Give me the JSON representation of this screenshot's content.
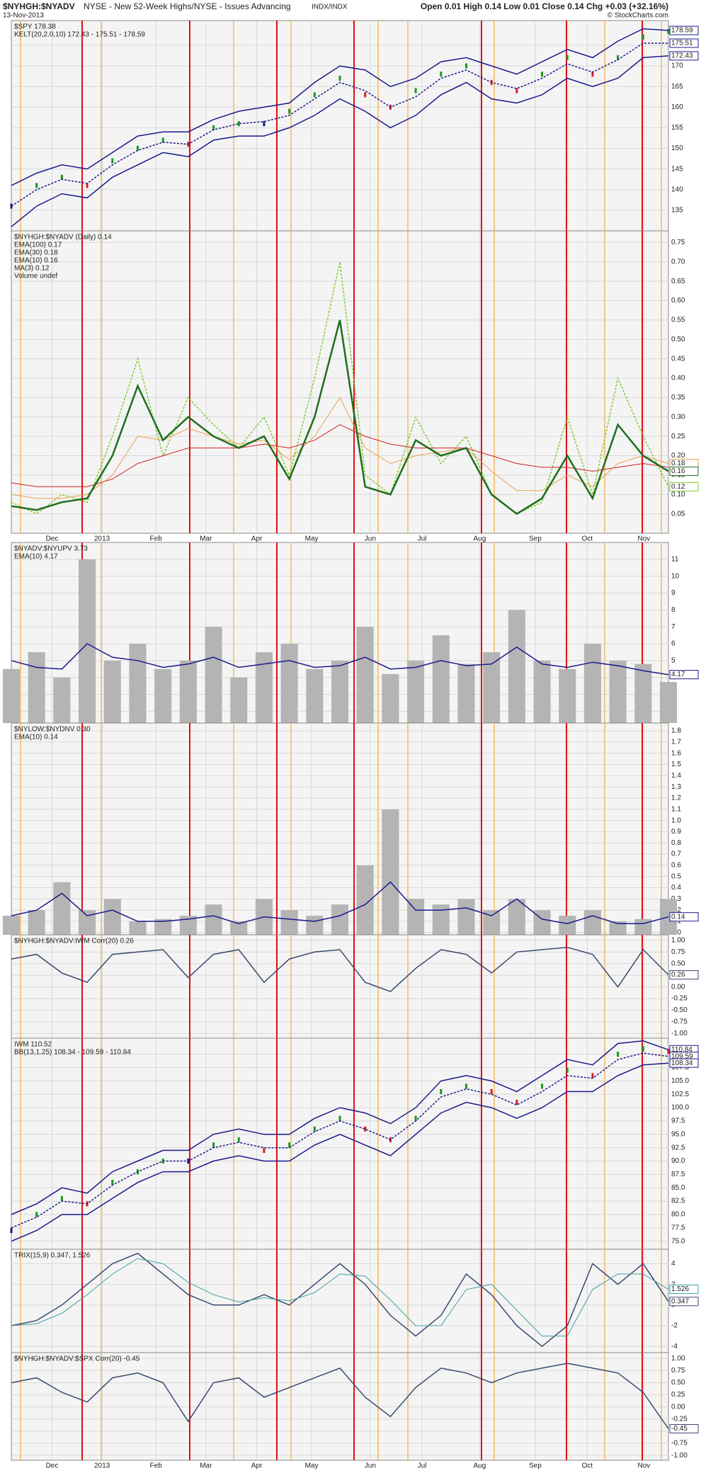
{
  "header": {
    "symbol": "$NYHGH:$NYADV",
    "name": "NYSE - New 52-Week Highs/NYSE - Issues Advancing",
    "exchange": "INDX/INDX",
    "date": "13-Nov-2013",
    "quote": "Open 0.01  High 0.14  Low 0.01  Close 0.14  Chg +0.03 (+32.16%)",
    "source": "© StockCharts.com"
  },
  "chart_data": [
    {
      "type": "line",
      "legend": [
        {
          "text": "$SPY 178.38",
          "color": "#000"
        },
        {
          "text": "KELT(20,2.0,10) 172.43 - 175.51 - 178.59",
          "color": "#1a1a8c"
        }
      ],
      "ylim": [
        130,
        181
      ],
      "yticks": [
        135,
        140,
        145,
        150,
        155,
        160,
        165,
        170,
        175
      ],
      "series": [
        {
          "style": "price",
          "color": "#1a1a8c",
          "values": [
            136,
            141,
            143,
            141,
            147,
            150,
            152,
            151,
            155,
            156,
            156,
            159,
            163,
            167,
            163,
            160,
            164,
            168,
            170,
            166,
            164,
            168,
            172,
            168,
            172,
            177,
            178.38
          ]
        },
        {
          "style": "solid",
          "color": "#1a1a8c",
          "values": [
            141,
            144,
            146,
            145,
            149,
            153,
            154,
            154,
            157,
            159,
            160,
            161,
            166,
            170,
            169,
            165,
            167,
            171,
            172,
            170,
            168,
            171,
            174,
            172,
            176,
            179,
            178.59
          ]
        },
        {
          "style": "dotted",
          "color": "#1a1a8c",
          "values": [
            136,
            140,
            142.5,
            141.5,
            146,
            149.5,
            151.5,
            151,
            154.5,
            156,
            156.5,
            158,
            162,
            166,
            164,
            160,
            162.5,
            167,
            169,
            166,
            164.5,
            167,
            170.5,
            168.5,
            171.5,
            175.5,
            175.51
          ]
        },
        {
          "style": "solid",
          "color": "#1a1a8c",
          "values": [
            131,
            136,
            139,
            138,
            143,
            146,
            149,
            148,
            152,
            153,
            153,
            155,
            158,
            162,
            159,
            155,
            158,
            163,
            166,
            162,
            161,
            163,
            167,
            165,
            167,
            172,
            172.43
          ]
        }
      ]
    },
    {
      "type": "line",
      "legend": [
        {
          "text": "$NYHGH:$NYADV (Daily) 0.14",
          "color": "#000"
        },
        {
          "text": "EMA(100) 0.17",
          "color": "#d42020"
        },
        {
          "text": "EMA(30) 0.18",
          "color": "#e8a050"
        },
        {
          "text": "EMA(10) 0.16",
          "color": "#1e6e1e"
        },
        {
          "text": "MA(3) 0.12",
          "color": "#7ccc2c"
        },
        {
          "text": "Volume undef",
          "color": "#444"
        }
      ],
      "ylim": [
        0,
        0.78
      ],
      "yticks": [
        0.05,
        {
          "value": 0.1,
          "label": "0.10"
        },
        0.15,
        {
          "value": 0.2,
          "label": "0.20"
        },
        0.25,
        {
          "value": 0.3,
          "label": "0.30"
        },
        0.35,
        {
          "value": 0.4,
          "label": "0.40"
        },
        0.45,
        {
          "value": 0.5,
          "label": "0.50"
        },
        0.55,
        {
          "value": 0.6,
          "label": "0.60"
        },
        0.65,
        {
          "value": 0.7,
          "label": "0.70"
        },
        0.75
      ],
      "xlim": [
        0,
        26
      ],
      "xticks": [
        {
          "value": 1.61,
          "label": "Dec"
        },
        {
          "value": 3.59,
          "label": "2013"
        },
        {
          "value": 5.72,
          "label": "Feb"
        },
        {
          "value": 7.7,
          "label": "Mar"
        },
        {
          "value": 9.71,
          "label": "Apr"
        },
        {
          "value": 11.88,
          "label": "May"
        },
        {
          "value": 14.2,
          "label": "Jun"
        },
        {
          "value": 16.25,
          "label": "Jul"
        },
        {
          "value": 18.53,
          "label": "Aug"
        },
        {
          "value": 20.73,
          "label": "Sep"
        },
        {
          "value": 22.79,
          "label": "Oct"
        },
        {
          "value": 25.03,
          "label": "Nov"
        }
      ],
      "series": [
        {
          "style": "dotted",
          "color": "#7ccc2c",
          "values": [
            0.08,
            0.05,
            0.1,
            0.08,
            0.25,
            0.45,
            0.2,
            0.35,
            0.28,
            0.22,
            0.3,
            0.15,
            0.4,
            0.7,
            0.15,
            0.1,
            0.3,
            0.18,
            0.25,
            0.1,
            0.05,
            0.08,
            0.3,
            0.1,
            0.4,
            0.25,
            0.12
          ]
        },
        {
          "style": "thin",
          "color": "#d42020",
          "values": [
            0.13,
            0.12,
            0.12,
            0.12,
            0.14,
            0.18,
            0.2,
            0.22,
            0.22,
            0.22,
            0.23,
            0.22,
            0.24,
            0.28,
            0.25,
            0.23,
            0.22,
            0.22,
            0.22,
            0.2,
            0.18,
            0.17,
            0.17,
            0.16,
            0.17,
            0.18,
            0.17
          ]
        },
        {
          "style": "thin",
          "color": "#e8a050",
          "values": [
            0.1,
            0.09,
            0.09,
            0.1,
            0.15,
            0.25,
            0.24,
            0.27,
            0.25,
            0.23,
            0.24,
            0.19,
            0.25,
            0.35,
            0.22,
            0.18,
            0.2,
            0.21,
            0.22,
            0.16,
            0.11,
            0.11,
            0.15,
            0.12,
            0.18,
            0.2,
            0.18
          ]
        },
        {
          "style": "bold",
          "color": "#1e6e1e",
          "values": [
            0.07,
            0.06,
            0.08,
            0.09,
            0.2,
            0.38,
            0.24,
            0.3,
            0.25,
            0.22,
            0.25,
            0.14,
            0.3,
            0.55,
            0.12,
            0.1,
            0.24,
            0.2,
            0.22,
            0.1,
            0.05,
            0.09,
            0.2,
            0.09,
            0.28,
            0.2,
            0.16
          ]
        }
      ]
    },
    {
      "type": "line",
      "legend": [
        {
          "text": "$NYADV:$NYUPV 3.73",
          "color": "#000"
        },
        {
          "text": "EMA(10) 4.17",
          "color": "#1a1a8c"
        }
      ],
      "ylim": [
        1.3,
        12
      ],
      "yticks": [
        2,
        3,
        4,
        5,
        6,
        7,
        8,
        9,
        10,
        11
      ],
      "series": [
        {
          "style": "bars",
          "color": "#b4b4b4",
          "values": [
            4.5,
            5.5,
            4,
            11,
            5,
            6,
            4.5,
            5,
            7,
            4,
            5.5,
            6,
            4.5,
            5,
            7,
            4.2,
            5,
            6.5,
            4.8,
            5.5,
            8,
            5,
            4.5,
            6,
            5,
            4.8,
            3.73
          ]
        },
        {
          "style": "solid",
          "color": "#1a1a8c",
          "values": [
            5,
            4.6,
            4.5,
            6,
            5.2,
            5,
            4.6,
            4.8,
            5.2,
            4.6,
            4.8,
            5,
            4.6,
            4.7,
            5.2,
            4.5,
            4.6,
            5,
            4.7,
            4.8,
            5.8,
            4.8,
            4.6,
            4.9,
            4.7,
            4.4,
            4.17
          ]
        }
      ]
    },
    {
      "type": "line",
      "legend": [
        {
          "text": "$NYLOW:$NYDNV 0.30",
          "color": "#000"
        },
        {
          "text": "EMA(10) 0.14",
          "color": "#1a1a8c"
        }
      ],
      "ylim": [
        -0.02,
        1.87
      ],
      "yticks": [
        {
          "value": 0,
          "label": "0.0"
        },
        0.1,
        0.2,
        0.3,
        0.4,
        0.5,
        0.6,
        0.7,
        0.8,
        0.9,
        {
          "value": 1,
          "label": "1.0"
        },
        1.1,
        1.2,
        1.3,
        1.4,
        1.5,
        1.6,
        1.7,
        1.8
      ],
      "series": [
        {
          "style": "bars",
          "color": "#b4b4b4",
          "values": [
            0.15,
            0.2,
            0.45,
            0.2,
            0.3,
            0.1,
            0.12,
            0.15,
            0.25,
            0.1,
            0.3,
            0.2,
            0.15,
            0.25,
            0.6,
            1.1,
            0.3,
            0.25,
            0.3,
            0.2,
            0.3,
            0.2,
            0.15,
            0.2,
            0.1,
            0.12,
            0.3
          ]
        },
        {
          "style": "solid",
          "color": "#1a1a8c",
          "values": [
            0.15,
            0.2,
            0.35,
            0.15,
            0.2,
            0.1,
            0.1,
            0.12,
            0.15,
            0.08,
            0.14,
            0.12,
            0.1,
            0.15,
            0.25,
            0.45,
            0.2,
            0.2,
            0.22,
            0.15,
            0.3,
            0.12,
            0.08,
            0.15,
            0.08,
            0.08,
            0.14
          ]
        }
      ]
    },
    {
      "type": "line",
      "legend": [
        {
          "text": "$NYHGH:$NYADV:IWM Corr(20) 0.26",
          "color": "#000"
        }
      ],
      "ylim": [
        -1.1,
        1.12
      ],
      "yticks": [
        {
          "value": -1,
          "label": "-1.00"
        },
        -0.75,
        {
          "value": -0.5,
          "label": "-0.50"
        },
        -0.25,
        {
          "value": 0,
          "label": "0.00"
        },
        0.25,
        {
          "value": 0.5,
          "label": "0.50"
        },
        0.75,
        {
          "value": 1,
          "label": "1.00"
        }
      ],
      "series": [
        {
          "style": "solid",
          "color": "#3a4a70",
          "values": [
            0.6,
            0.7,
            0.3,
            0.1,
            0.7,
            0.75,
            0.8,
            0.2,
            0.7,
            0.8,
            0.1,
            0.6,
            0.75,
            0.8,
            0.1,
            -0.1,
            0.4,
            0.8,
            0.7,
            0.3,
            0.75,
            0.8,
            0.85,
            0.7,
            0,
            0.8,
            0.26
          ]
        }
      ]
    },
    {
      "type": "line",
      "legend": [
        {
          "text": "IWM 110.52",
          "color": "#000"
        },
        {
          "text": "BB(13,1.25) 108.34 - 109.59 - 110.84",
          "color": "#1a1a8c"
        }
      ],
      "ylim": [
        73.5,
        113
      ],
      "yticks": [
        {
          "value": 75,
          "label": "75.0"
        },
        77.5,
        {
          "value": 80,
          "label": "80.0"
        },
        82.5,
        {
          "value": 85,
          "label": "85.0"
        },
        87.5,
        {
          "value": 90,
          "label": "90.0"
        },
        92.5,
        {
          "value": 95,
          "label": "95.0"
        },
        97.5,
        {
          "value": 100,
          "label": "100.0"
        },
        102.5,
        {
          "value": 105,
          "label": "105.0"
        },
        107.5,
        {
          "value": 110,
          "label": "110.0"
        }
      ],
      "series": [
        {
          "style": "price",
          "color": "#1a1a8c",
          "values": [
            77,
            80,
            83,
            82,
            86,
            88,
            90,
            90,
            93,
            94,
            92,
            93,
            96,
            98,
            96,
            94,
            98,
            103,
            104,
            103,
            101,
            104,
            107,
            106,
            110,
            111,
            110.52
          ]
        },
        {
          "style": "solid",
          "color": "#1a1a8c",
          "values": [
            80,
            82,
            85,
            84,
            88,
            90,
            92,
            92,
            95,
            96,
            95,
            95,
            98,
            100,
            99,
            97,
            100,
            105,
            106,
            105,
            103,
            106,
            109,
            108,
            112,
            112.5,
            110.84
          ]
        },
        {
          "style": "dotted",
          "color": "#1a1a8c",
          "values": [
            77.5,
            79.5,
            82.5,
            82,
            85.5,
            88,
            90,
            90,
            92.5,
            93.5,
            92.5,
            92.5,
            95.5,
            97.5,
            96,
            94,
            97.5,
            102,
            103.5,
            102.5,
            100.5,
            103,
            106,
            105.5,
            109,
            110.2,
            109.59
          ]
        },
        {
          "style": "solid",
          "color": "#1a1a8c",
          "values": [
            75,
            77,
            80,
            80,
            83,
            86,
            88,
            88,
            90,
            91,
            90,
            90,
            93,
            95,
            93,
            91,
            95,
            99,
            101,
            100,
            98,
            100,
            103,
            103,
            106,
            108,
            108.34
          ]
        }
      ]
    },
    {
      "type": "line",
      "legend": [
        {
          "text": "TRIX(15,9) 0.347, 1.526",
          "color": "#000"
        }
      ],
      "ylim": [
        -4.6,
        5.4
      ],
      "yticks": [
        -4,
        -2,
        0,
        2,
        4
      ],
      "series": [
        {
          "style": "solid",
          "color": "#3a4a70",
          "values": [
            -2,
            -1.5,
            0,
            2,
            4,
            5,
            3,
            1,
            0,
            0,
            1,
            0,
            2,
            4,
            2,
            -1,
            -3,
            -1,
            3,
            1,
            -2,
            -4,
            -2,
            4,
            2,
            4,
            0.347
          ]
        },
        {
          "style": "thin",
          "color": "#40a0a0",
          "values": [
            -2,
            -1.8,
            -0.8,
            1,
            3,
            4.5,
            4,
            2.2,
            1,
            0.3,
            0.7,
            0.4,
            1.2,
            3,
            2.8,
            0.5,
            -2,
            -2,
            1.5,
            2,
            -0.5,
            -3,
            -3,
            1.5,
            3,
            3,
            1.526
          ]
        }
      ]
    },
    {
      "type": "line",
      "legend": [
        {
          "text": "$NYHGH:$NYADV:$SPX Corr(20) -0.45",
          "color": "#000"
        }
      ],
      "ylim": [
        -1.1,
        1.12
      ],
      "yticks": [
        {
          "value": -1,
          "label": "-1.00"
        },
        -0.75,
        {
          "value": -0.5,
          "label": "-0.50"
        },
        -0.25,
        {
          "value": 0,
          "label": "0.00"
        },
        0.25,
        {
          "value": 0.5,
          "label": "0.50"
        },
        0.75,
        {
          "value": 1,
          "label": "1.00"
        }
      ],
      "xlim": [
        0,
        26
      ],
      "xticks": [
        {
          "value": 1.61,
          "label": "Dec"
        },
        {
          "value": 3.59,
          "label": "2013"
        },
        {
          "value": 5.72,
          "label": "Feb"
        },
        {
          "value": 7.7,
          "label": "Mar"
        },
        {
          "value": 9.71,
          "label": "Apr"
        },
        {
          "value": 11.88,
          "label": "May"
        },
        {
          "value": 14.2,
          "label": "Jun"
        },
        {
          "value": 16.25,
          "label": "Jul"
        },
        {
          "value": 18.53,
          "label": "Aug"
        },
        {
          "value": 20.73,
          "label": "Sep"
        },
        {
          "value": 22.79,
          "label": "Oct"
        },
        {
          "value": 25.03,
          "label": "Nov"
        }
      ],
      "series": [
        {
          "style": "solid",
          "color": "#3a4a70",
          "values": [
            0.5,
            0.6,
            0.3,
            0.1,
            0.6,
            0.7,
            0.5,
            -0.3,
            0.5,
            0.6,
            0.2,
            0.4,
            0.6,
            0.8,
            0.2,
            -0.2,
            0.4,
            0.8,
            0.7,
            0.5,
            0.7,
            0.8,
            0.9,
            0.8,
            0.7,
            0.3,
            -0.45
          ]
        }
      ]
    }
  ]
}
